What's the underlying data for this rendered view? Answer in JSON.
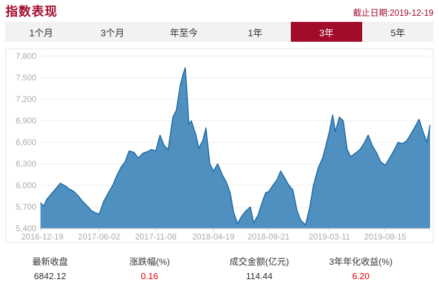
{
  "header": {
    "title": "指数表现",
    "as_of": "截止日期:2019-12-19"
  },
  "tabs": [
    {
      "label": "1个月",
      "active": false
    },
    {
      "label": "3个月",
      "active": false
    },
    {
      "label": "年至今",
      "active": false
    },
    {
      "label": "1年",
      "active": false
    },
    {
      "label": "3年",
      "active": true
    },
    {
      "label": "5年",
      "active": false
    }
  ],
  "colors": {
    "accent": "#a30b2a",
    "series_fill": "#4f90c0",
    "series_line": "#1f6aa5",
    "positive": "#e60000"
  },
  "chart_data": {
    "type": "area",
    "title": "",
    "xlabel": "",
    "ylabel": "",
    "ylim": [
      5400,
      7800
    ],
    "yticks": [
      5400,
      5700,
      6000,
      6300,
      6600,
      6900,
      7200,
      7500,
      7800
    ],
    "ytick_labels": [
      "5,400",
      "5,700",
      "6,000",
      "6,300",
      "6,600",
      "6,900",
      "7,200",
      "7,500",
      "7,800"
    ],
    "xlim": [
      "2016-12-19",
      "2019-12-19"
    ],
    "xticks": [
      "2016-12-19",
      "2017-06-02",
      "2017-11-08",
      "2018-04-19",
      "2018-09-21",
      "2019-03-11",
      "2019-08-15"
    ],
    "grid": true,
    "legend": "none",
    "x": [
      "2016-12-19",
      "2016-12-28",
      "2017-01-05",
      "2017-01-18",
      "2017-02-01",
      "2017-02-13",
      "2017-02-28",
      "2017-03-10",
      "2017-03-22",
      "2017-04-05",
      "2017-04-18",
      "2017-05-02",
      "2017-05-11",
      "2017-05-22",
      "2017-06-02",
      "2017-06-15",
      "2017-06-28",
      "2017-07-10",
      "2017-07-20",
      "2017-08-02",
      "2017-08-14",
      "2017-08-25",
      "2017-09-08",
      "2017-09-20",
      "2017-10-03",
      "2017-10-16",
      "2017-10-27",
      "2017-11-08",
      "2017-11-20",
      "2017-12-01",
      "2017-12-13",
      "2017-12-26",
      "2018-01-05",
      "2018-01-16",
      "2018-01-24",
      "2018-01-30",
      "2018-02-05",
      "2018-02-09",
      "2018-02-16",
      "2018-03-01",
      "2018-03-09",
      "2018-03-20",
      "2018-03-29",
      "2018-04-09",
      "2018-04-19",
      "2018-05-01",
      "2018-05-14",
      "2018-05-25",
      "2018-06-05",
      "2018-06-15",
      "2018-06-26",
      "2018-07-06",
      "2018-07-18",
      "2018-08-01",
      "2018-08-10",
      "2018-08-22",
      "2018-09-04",
      "2018-09-13",
      "2018-09-21",
      "2018-10-03",
      "2018-10-15",
      "2018-10-25",
      "2018-11-06",
      "2018-11-16",
      "2018-11-28",
      "2018-12-10",
      "2018-12-20",
      "2019-01-03",
      "2019-01-15",
      "2019-01-25",
      "2019-02-08",
      "2019-02-20",
      "2019-03-01",
      "2019-03-11",
      "2019-03-20",
      "2019-03-28",
      "2019-04-08",
      "2019-04-19",
      "2019-04-30",
      "2019-05-10",
      "2019-05-23",
      "2019-06-05",
      "2019-06-18",
      "2019-06-28",
      "2019-07-10",
      "2019-07-22",
      "2019-08-02",
      "2019-08-15",
      "2019-08-27",
      "2019-09-10",
      "2019-09-20",
      "2019-10-02",
      "2019-10-14",
      "2019-10-24",
      "2019-11-05",
      "2019-11-18",
      "2019-11-29",
      "2019-12-10",
      "2019-12-19"
    ],
    "values": [
      5760,
      5710,
      5800,
      5880,
      5960,
      6030,
      5990,
      5950,
      5920,
      5850,
      5770,
      5700,
      5650,
      5620,
      5600,
      5780,
      5900,
      6000,
      6120,
      6250,
      6330,
      6480,
      6460,
      6380,
      6450,
      6470,
      6500,
      6480,
      6700,
      6560,
      6500,
      6950,
      7050,
      7400,
      7550,
      7640,
      7200,
      6850,
      6900,
      6700,
      6520,
      6620,
      6800,
      6300,
      6200,
      6300,
      6150,
      6050,
      5900,
      5620,
      5470,
      5560,
      5640,
      5700,
      5480,
      5580,
      5780,
      5900,
      5910,
      6000,
      6080,
      6200,
      6100,
      6010,
      5940,
      5650,
      5520,
      5450,
      5700,
      6000,
      6250,
      6380,
      6550,
      6750,
      6980,
      6750,
      6950,
      6900,
      6500,
      6400,
      6450,
      6500,
      6600,
      6700,
      6550,
      6450,
      6330,
      6280,
      6380,
      6500,
      6600,
      6580,
      6620,
      6700,
      6800,
      6920,
      6750,
      6600,
      6842
    ]
  },
  "stats": [
    {
      "label": "最新收盘",
      "value": "6842.12",
      "highlight": false
    },
    {
      "label": "涨跌幅(%)",
      "value": "0.16",
      "highlight": true
    },
    {
      "label": "成交金额(亿元)",
      "value": "114.44",
      "highlight": false
    },
    {
      "label": "3年年化收益(%)",
      "value": "6.20",
      "highlight": true
    }
  ]
}
